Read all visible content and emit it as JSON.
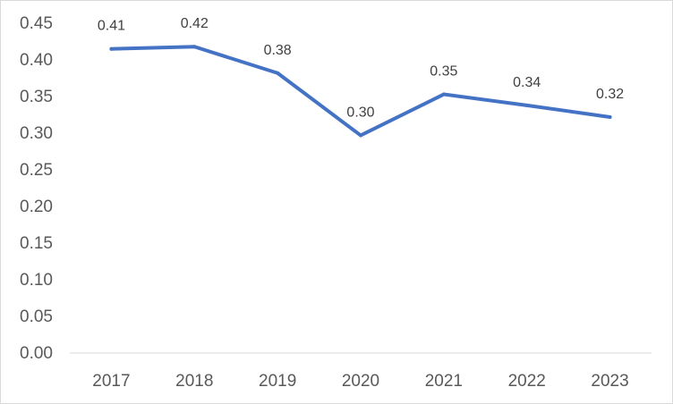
{
  "chart_data": {
    "type": "line",
    "title": "",
    "xlabel": "",
    "ylabel": "",
    "categories": [
      "2017",
      "2018",
      "2019",
      "2020",
      "2021",
      "2022",
      "2023"
    ],
    "series": [
      {
        "values": [
          0.415,
          0.418,
          0.382,
          0.297,
          0.353,
          0.338,
          0.322
        ]
      }
    ],
    "data_labels": [
      "0.41",
      "0.42",
      "0.38",
      "0.30",
      "0.35",
      "0.34",
      "0.32"
    ],
    "y_ticks": [
      "0.00",
      "0.05",
      "0.10",
      "0.15",
      "0.20",
      "0.25",
      "0.30",
      "0.35",
      "0.40",
      "0.45"
    ],
    "ylim": [
      0,
      0.45
    ],
    "grid": false,
    "legend": "none",
    "colors": {
      "line": "#4472C4",
      "axis": "#d9d9d9",
      "tick_text": "#595959",
      "label_text": "#404040"
    }
  }
}
